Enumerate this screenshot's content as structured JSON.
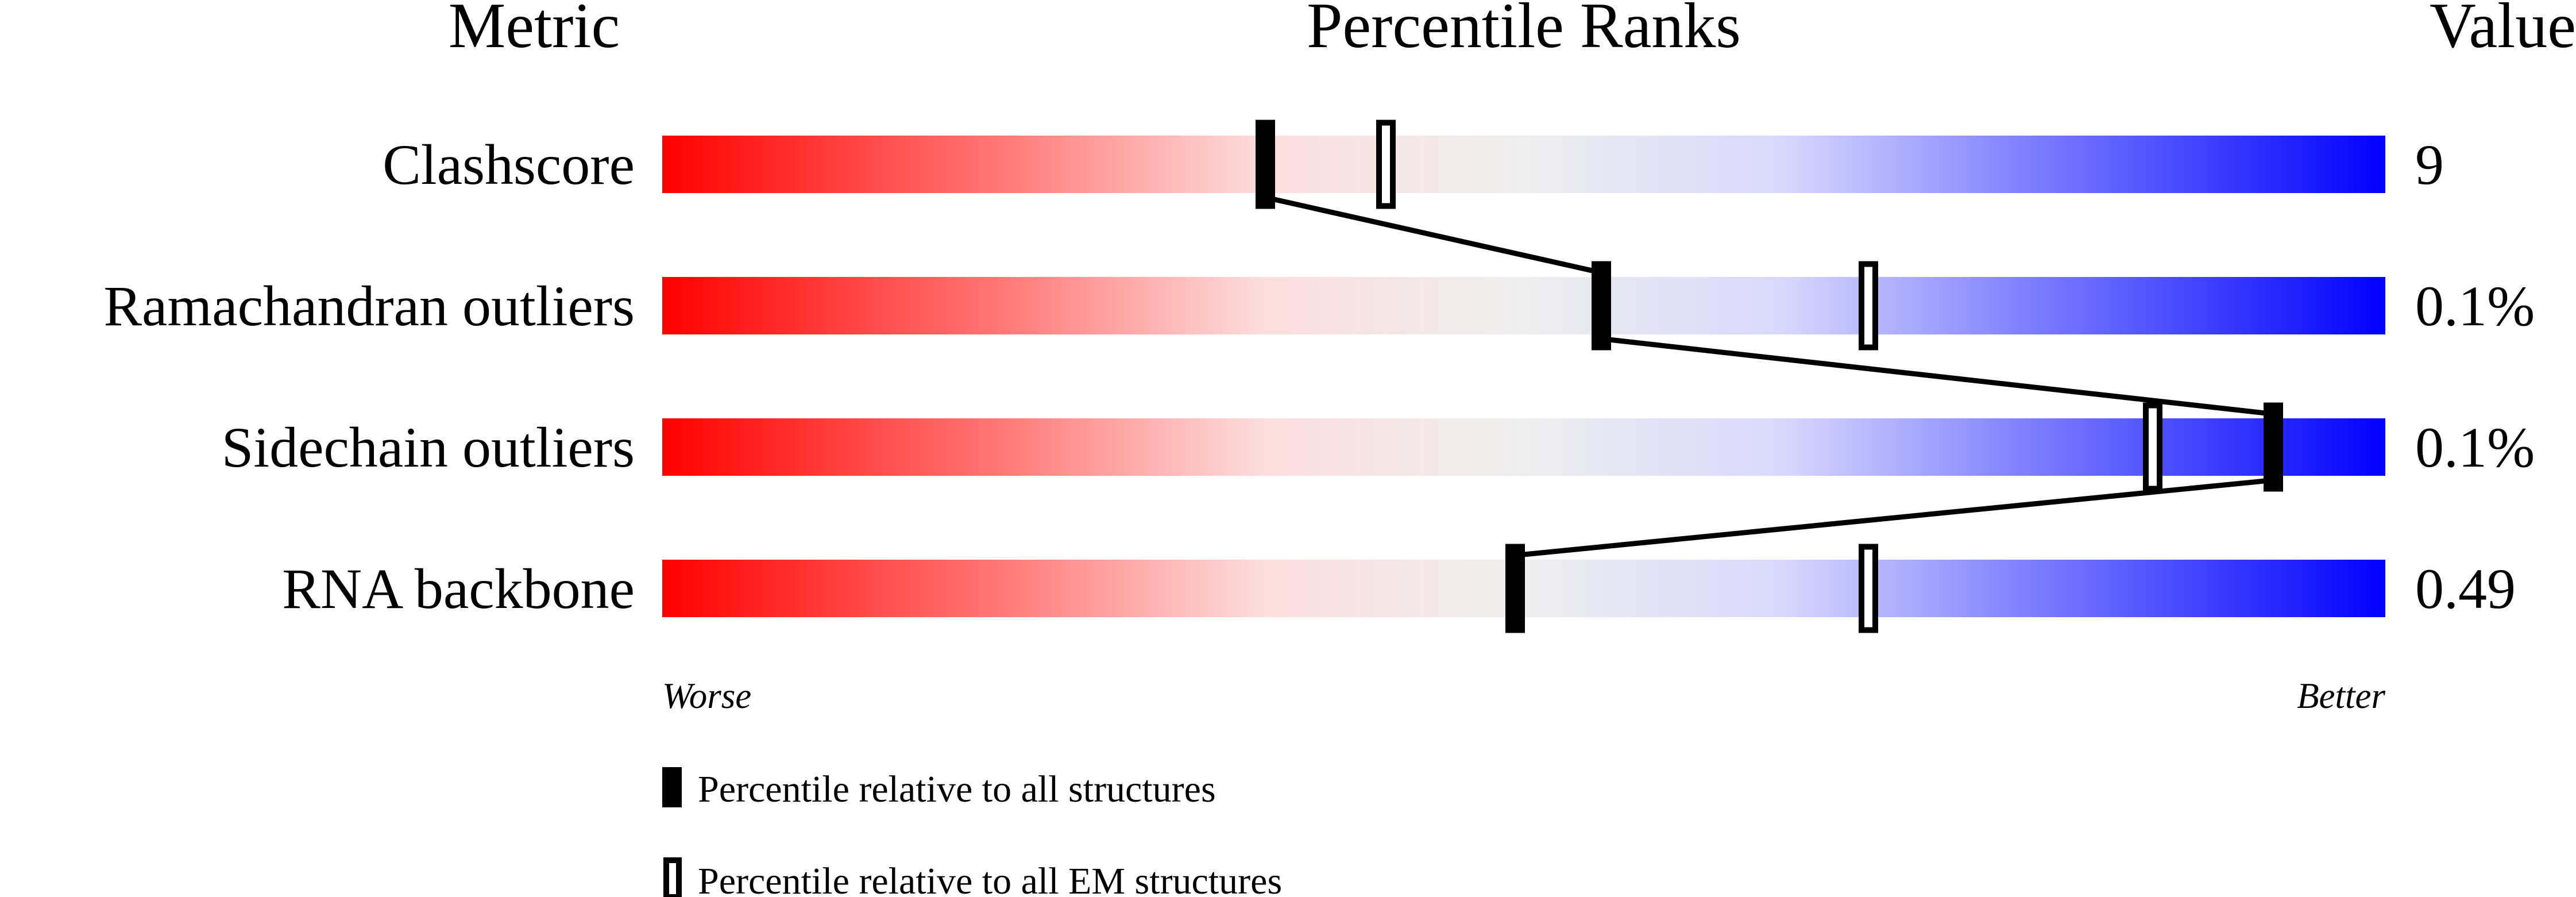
{
  "headers": {
    "metric": "Metric",
    "percentile": "Percentile Ranks",
    "value": "Value"
  },
  "axis": {
    "worse": "Worse",
    "better": "Better"
  },
  "legend": {
    "all": "Percentile relative to all structures",
    "em": "Percentile relative to all EM structures"
  },
  "colors": {
    "worse": "#ff0000",
    "middle": "#eeeeee",
    "better": "#0000ff",
    "marker": "#000000"
  },
  "chart_data": {
    "type": "slider",
    "xlim": [
      0,
      100
    ],
    "metrics": [
      {
        "name": "Clashscore",
        "value": "9",
        "percentile_all": 35,
        "percentile_em": 42
      },
      {
        "name": "Ramachandran outliers",
        "value": "0.1%",
        "percentile_all": 54.5,
        "percentile_em": 70
      },
      {
        "name": "Sidechain outliers",
        "value": "0.1%",
        "percentile_all": 93.5,
        "percentile_em": 86.5
      },
      {
        "name": "RNA backbone",
        "value": "0.49",
        "percentile_all": 49.5,
        "percentile_em": 70
      }
    ]
  }
}
